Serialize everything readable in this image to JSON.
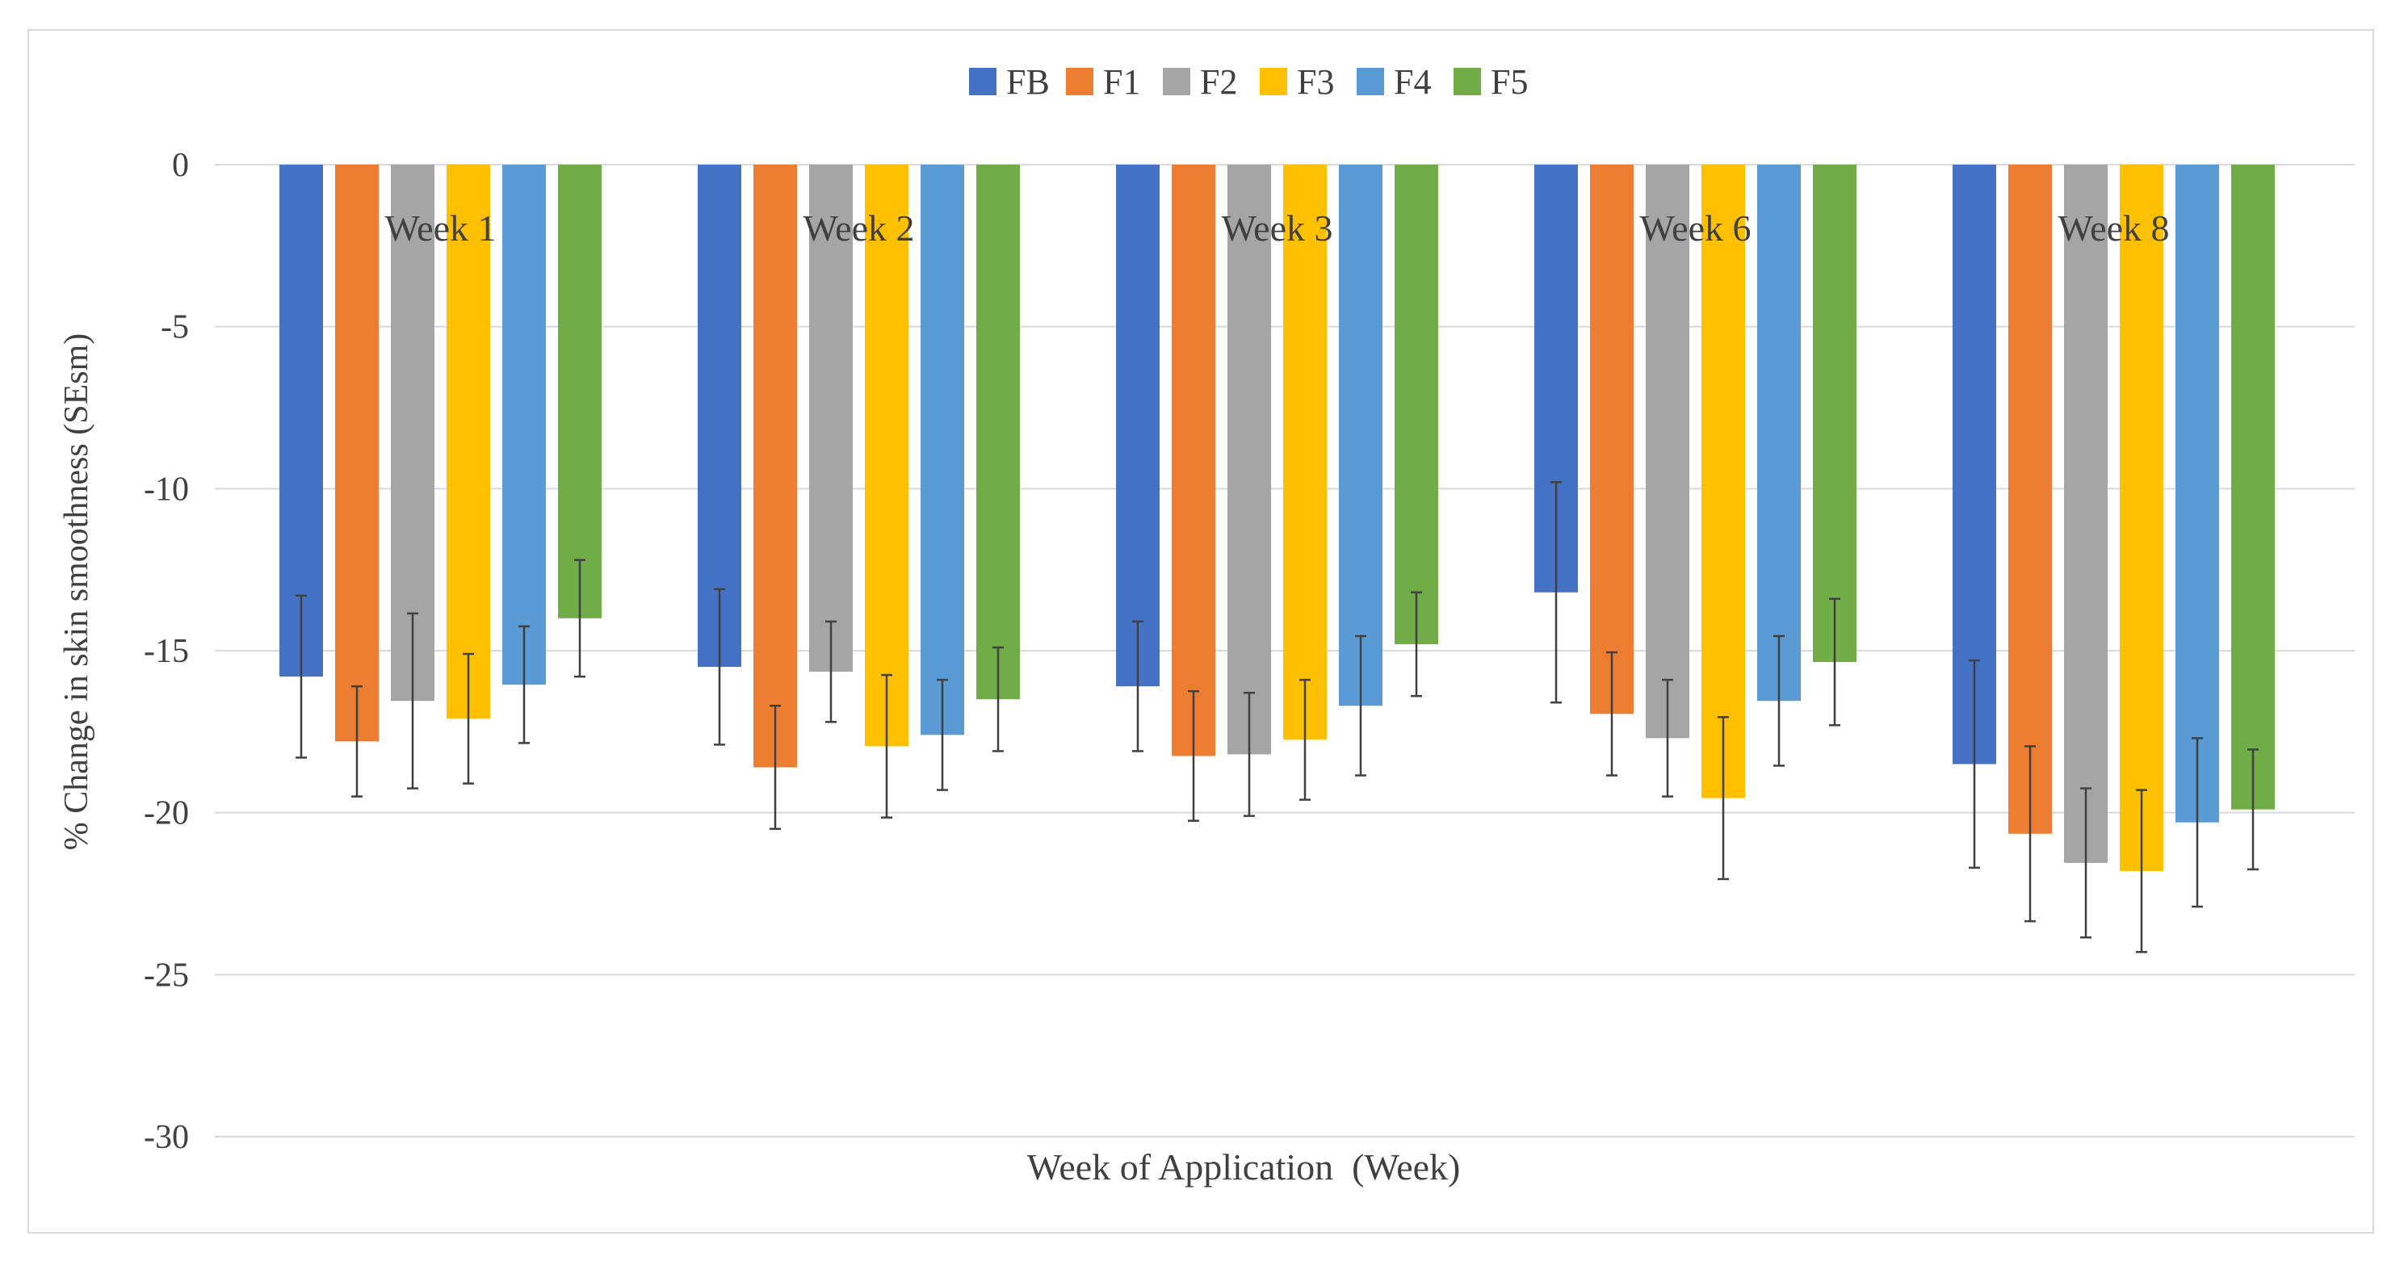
{
  "chart_data": {
    "type": "bar",
    "title": "",
    "xlabel": "Week of Application  (Week)",
    "ylabel": "% Change in skin smoothness (SEsm)",
    "ylim": [
      -30,
      0
    ],
    "yticks": [
      0,
      -5,
      -10,
      -15,
      -20,
      -25,
      -30
    ],
    "ytick_labels": [
      "0",
      "-5",
      "-10",
      "-15",
      "-20",
      "-25",
      "-30"
    ],
    "grid": true,
    "legend_position": "top-center",
    "categories": [
      "Week 1",
      "Week 2",
      "Week 3",
      "Week 6",
      "Week 8"
    ],
    "series": [
      {
        "name": "FB",
        "color": "#4472C4",
        "values": [
          -15.8,
          -15.5,
          -16.1,
          -13.2,
          -18.5
        ],
        "errors": [
          2.5,
          2.4,
          2.0,
          3.4,
          3.2
        ]
      },
      {
        "name": "F1",
        "color": "#ED7D31",
        "values": [
          -17.8,
          -18.6,
          -18.25,
          -16.95,
          -20.65
        ],
        "errors": [
          1.7,
          1.9,
          2.0,
          1.9,
          2.7
        ]
      },
      {
        "name": "F2",
        "color": "#A5A5A5",
        "values": [
          -16.55,
          -15.65,
          -18.2,
          -17.7,
          -21.55
        ],
        "errors": [
          2.7,
          1.55,
          1.9,
          1.8,
          2.3
        ]
      },
      {
        "name": "F3",
        "color": "#FFC000",
        "values": [
          -17.1,
          -17.95,
          -17.75,
          -19.55,
          -21.8
        ],
        "errors": [
          2.0,
          2.2,
          1.85,
          2.5,
          2.5
        ]
      },
      {
        "name": "F4",
        "color": "#5B9BD5",
        "values": [
          -16.05,
          -17.6,
          -16.7,
          -16.55,
          -20.3
        ],
        "errors": [
          1.8,
          1.7,
          2.15,
          2.0,
          2.6
        ]
      },
      {
        "name": "F5",
        "color": "#70AD47",
        "values": [
          -14.0,
          -16.5,
          -14.8,
          -15.35,
          -19.9
        ],
        "errors": [
          1.8,
          1.6,
          1.6,
          1.95,
          1.85
        ]
      }
    ],
    "errorbar_color": "#404040"
  }
}
